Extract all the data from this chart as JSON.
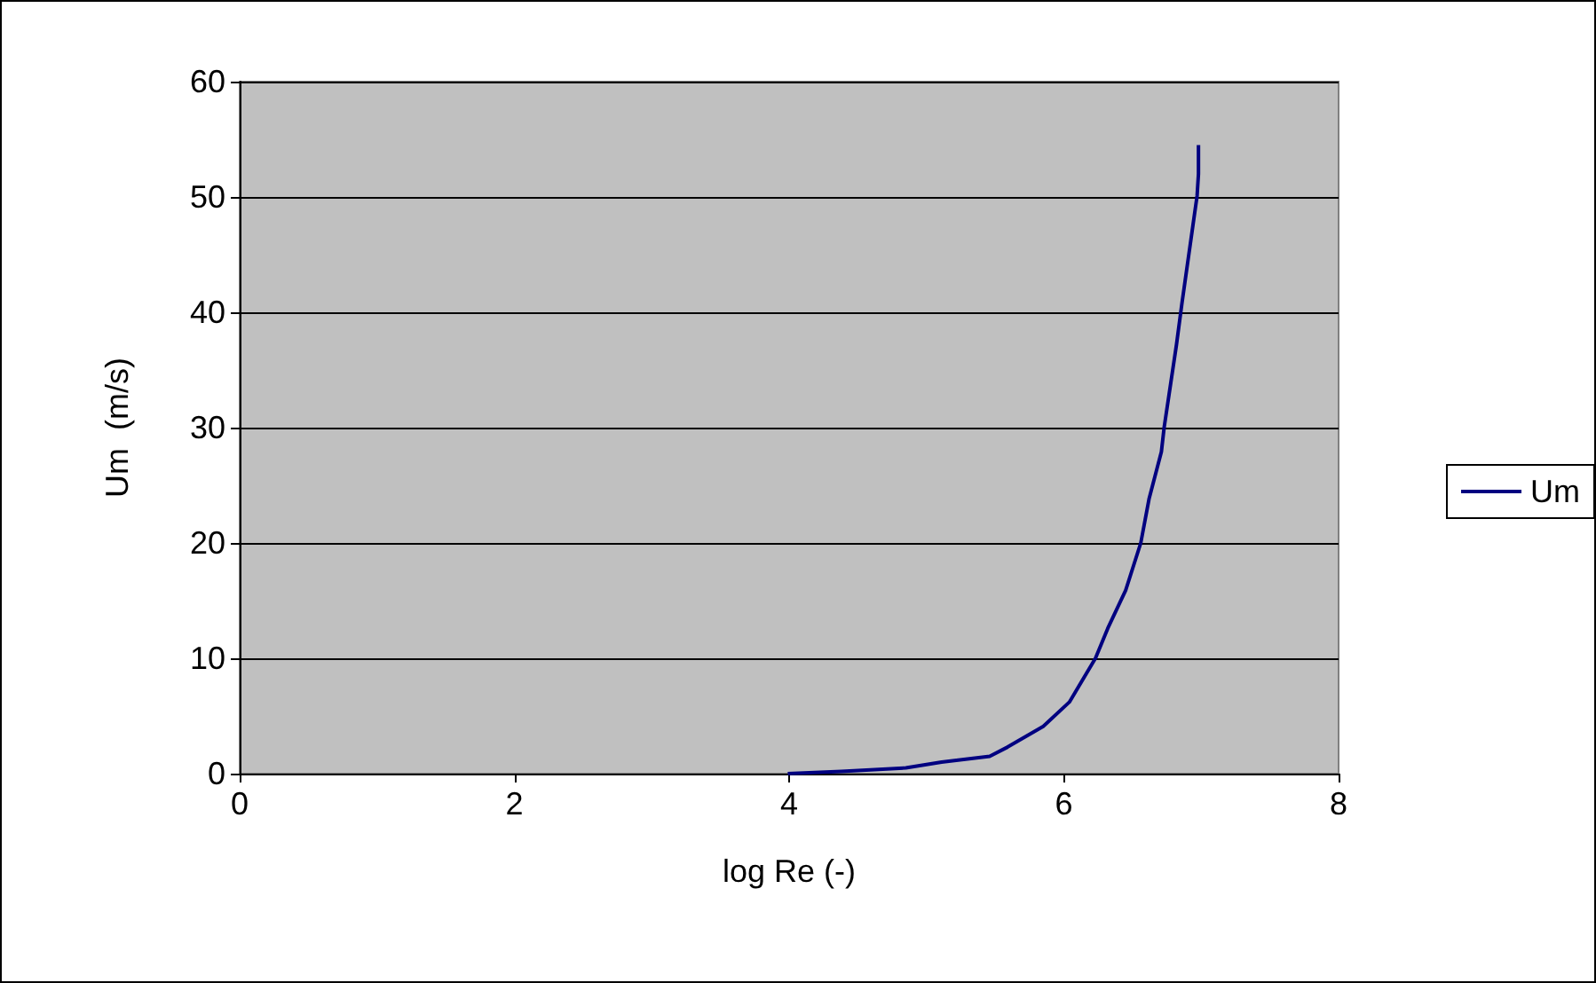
{
  "chart_data": {
    "type": "line",
    "xlabel": "log Re (-)",
    "ylabel": "Um  (m/s)",
    "series": [
      {
        "name": "Um",
        "color": "#000080",
        "x": [
          3.99,
          4.38,
          4.85,
          5.11,
          5.46,
          5.59,
          5.85,
          6.04,
          6.23,
          6.32,
          6.45,
          6.56,
          6.62,
          6.71,
          6.73,
          6.82,
          6.86,
          6.97,
          6.98,
          6.98
        ],
        "values": [
          0,
          0.2,
          0.5,
          1.0,
          1.5,
          2.3,
          4.1,
          6.2,
          10,
          12.6,
          15.9,
          20,
          23.8,
          27.9,
          30,
          37.2,
          40.8,
          50.1,
          52,
          54.5
        ]
      }
    ],
    "xlim": [
      0,
      8
    ],
    "xticks": [
      0,
      2,
      4,
      6,
      8
    ],
    "ylim": [
      0,
      60
    ],
    "yticks": [
      0,
      10,
      20,
      30,
      40,
      50,
      60
    ],
    "grid": "y",
    "legend": "right",
    "marker": "none",
    "line_style": "solid"
  }
}
